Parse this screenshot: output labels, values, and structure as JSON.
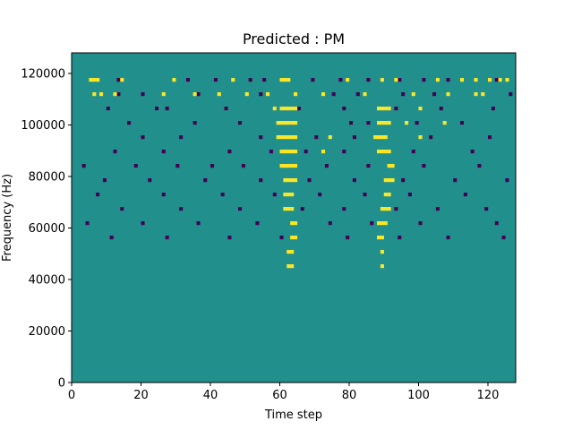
{
  "chart_data": {
    "type": "heatmap",
    "title": "Predicted : PM",
    "xlabel": "Time step",
    "ylabel": "Frequency (Hz)",
    "xlim": [
      0,
      128
    ],
    "ylim": [
      0,
      128000
    ],
    "xticks": [
      0,
      20,
      40,
      60,
      80,
      100,
      120
    ],
    "yticks": [
      0,
      20000,
      40000,
      60000,
      80000,
      100000,
      120000
    ],
    "grid": false,
    "legend": "none",
    "colormap": "viridis",
    "value_levels": {
      "low": {
        "value": 0,
        "color": "#440154"
      },
      "mid": {
        "value": 0.5,
        "color": "#21908d"
      },
      "high": {
        "value": 1,
        "color": "#fde725"
      }
    },
    "background_value": 0.5,
    "high_cells": [
      [
        5,
        84
      ],
      [
        6,
        84
      ],
      [
        7,
        84
      ],
      [
        14,
        84
      ],
      [
        29,
        84
      ],
      [
        46,
        84
      ],
      [
        60,
        84
      ],
      [
        61,
        84
      ],
      [
        62,
        84
      ],
      [
        79,
        84
      ],
      [
        89,
        84
      ],
      [
        93,
        84
      ],
      [
        105,
        84
      ],
      [
        112,
        84
      ],
      [
        116,
        84
      ],
      [
        120,
        84
      ],
      [
        123,
        84
      ],
      [
        125,
        84
      ],
      [
        6,
        80
      ],
      [
        8,
        80
      ],
      [
        12,
        80
      ],
      [
        26,
        80
      ],
      [
        35,
        80
      ],
      [
        42,
        80
      ],
      [
        50,
        80
      ],
      [
        56,
        80
      ],
      [
        64,
        80
      ],
      [
        72,
        80
      ],
      [
        84,
        80
      ],
      [
        98,
        80
      ],
      [
        108,
        80
      ],
      [
        116,
        80
      ],
      [
        118,
        80
      ],
      [
        58,
        76
      ],
      [
        60,
        76
      ],
      [
        61,
        76
      ],
      [
        62,
        76
      ],
      [
        63,
        76
      ],
      [
        64,
        76
      ],
      [
        88,
        76
      ],
      [
        89,
        76
      ],
      [
        90,
        76
      ],
      [
        91,
        76
      ],
      [
        100,
        76
      ],
      [
        59,
        72
      ],
      [
        60,
        72
      ],
      [
        61,
        72
      ],
      [
        62,
        72
      ],
      [
        63,
        72
      ],
      [
        64,
        72
      ],
      [
        88,
        72
      ],
      [
        89,
        72
      ],
      [
        90,
        72
      ],
      [
        91,
        72
      ],
      [
        96,
        72
      ],
      [
        107,
        72
      ],
      [
        59,
        68
      ],
      [
        60,
        68
      ],
      [
        61,
        68
      ],
      [
        62,
        68
      ],
      [
        63,
        68
      ],
      [
        64,
        68
      ],
      [
        74,
        68
      ],
      [
        87,
        68
      ],
      [
        88,
        68
      ],
      [
        89,
        68
      ],
      [
        90,
        68
      ],
      [
        100,
        68
      ],
      [
        60,
        64
      ],
      [
        61,
        64
      ],
      [
        62,
        64
      ],
      [
        63,
        64
      ],
      [
        64,
        64
      ],
      [
        72,
        64
      ],
      [
        88,
        64
      ],
      [
        89,
        64
      ],
      [
        90,
        64
      ],
      [
        91,
        64
      ],
      [
        60,
        60
      ],
      [
        61,
        60
      ],
      [
        62,
        60
      ],
      [
        63,
        60
      ],
      [
        64,
        60
      ],
      [
        91,
        60
      ],
      [
        92,
        60
      ],
      [
        61,
        56
      ],
      [
        62,
        56
      ],
      [
        63,
        56
      ],
      [
        64,
        56
      ],
      [
        90,
        56
      ],
      [
        91,
        56
      ],
      [
        92,
        56
      ],
      [
        61,
        52
      ],
      [
        62,
        52
      ],
      [
        63,
        52
      ],
      [
        90,
        52
      ],
      [
        91,
        52
      ],
      [
        61,
        48
      ],
      [
        62,
        48
      ],
      [
        63,
        48
      ],
      [
        89,
        48
      ],
      [
        90,
        48
      ],
      [
        91,
        48
      ],
      [
        63,
        44
      ],
      [
        64,
        44
      ],
      [
        88,
        44
      ],
      [
        89,
        44
      ],
      [
        90,
        44
      ],
      [
        63,
        40
      ],
      [
        64,
        40
      ],
      [
        88,
        40
      ],
      [
        89,
        40
      ],
      [
        62,
        36
      ],
      [
        63,
        36
      ],
      [
        89,
        36
      ],
      [
        62,
        32
      ],
      [
        63,
        32
      ],
      [
        89,
        32
      ]
    ],
    "low_cells": [
      [
        13,
        84
      ],
      [
        33,
        84
      ],
      [
        41,
        84
      ],
      [
        51,
        84
      ],
      [
        55,
        84
      ],
      [
        69,
        84
      ],
      [
        77,
        84
      ],
      [
        85,
        84
      ],
      [
        94,
        84
      ],
      [
        101,
        84
      ],
      [
        108,
        84
      ],
      [
        122,
        84
      ],
      [
        13,
        80
      ],
      [
        20,
        80
      ],
      [
        36,
        80
      ],
      [
        54,
        80
      ],
      [
        75,
        80
      ],
      [
        82,
        80
      ],
      [
        95,
        80
      ],
      [
        104,
        80
      ],
      [
        126,
        80
      ],
      [
        10,
        76
      ],
      [
        24,
        76
      ],
      [
        27,
        76
      ],
      [
        44,
        76
      ],
      [
        65,
        76
      ],
      [
        78,
        76
      ],
      [
        93,
        76
      ],
      [
        106,
        76
      ],
      [
        121,
        76
      ],
      [
        16,
        72
      ],
      [
        35,
        72
      ],
      [
        48,
        72
      ],
      [
        63,
        72
      ],
      [
        80,
        72
      ],
      [
        85,
        72
      ],
      [
        99,
        72
      ],
      [
        112,
        72
      ],
      [
        20,
        68
      ],
      [
        31,
        68
      ],
      [
        54,
        68
      ],
      [
        70,
        68
      ],
      [
        81,
        68
      ],
      [
        103,
        68
      ],
      [
        120,
        68
      ],
      [
        12,
        64
      ],
      [
        26,
        64
      ],
      [
        45,
        64
      ],
      [
        57,
        64
      ],
      [
        67,
        64
      ],
      [
        78,
        64
      ],
      [
        98,
        64
      ],
      [
        115,
        64
      ],
      [
        3,
        60
      ],
      [
        18,
        60
      ],
      [
        30,
        60
      ],
      [
        40,
        60
      ],
      [
        49,
        60
      ],
      [
        64,
        60
      ],
      [
        73,
        60
      ],
      [
        85,
        60
      ],
      [
        101,
        60
      ],
      [
        117,
        60
      ],
      [
        9,
        56
      ],
      [
        22,
        56
      ],
      [
        38,
        56
      ],
      [
        54,
        56
      ],
      [
        68,
        56
      ],
      [
        81,
        56
      ],
      [
        95,
        56
      ],
      [
        110,
        56
      ],
      [
        125,
        56
      ],
      [
        7,
        52
      ],
      [
        26,
        52
      ],
      [
        43,
        52
      ],
      [
        58,
        52
      ],
      [
        71,
        52
      ],
      [
        84,
        52
      ],
      [
        97,
        52
      ],
      [
        113,
        52
      ],
      [
        14,
        48
      ],
      [
        31,
        48
      ],
      [
        48,
        48
      ],
      [
        66,
        48
      ],
      [
        78,
        48
      ],
      [
        93,
        48
      ],
      [
        105,
        48
      ],
      [
        119,
        48
      ],
      [
        4,
        44
      ],
      [
        20,
        44
      ],
      [
        36,
        44
      ],
      [
        53,
        44
      ],
      [
        74,
        44
      ],
      [
        86,
        44
      ],
      [
        100,
        44
      ],
      [
        122,
        44
      ],
      [
        11,
        40
      ],
      [
        27,
        40
      ],
      [
        45,
        40
      ],
      [
        60,
        40
      ],
      [
        79,
        40
      ],
      [
        94,
        40
      ],
      [
        108,
        40
      ],
      [
        124,
        40
      ]
    ]
  }
}
